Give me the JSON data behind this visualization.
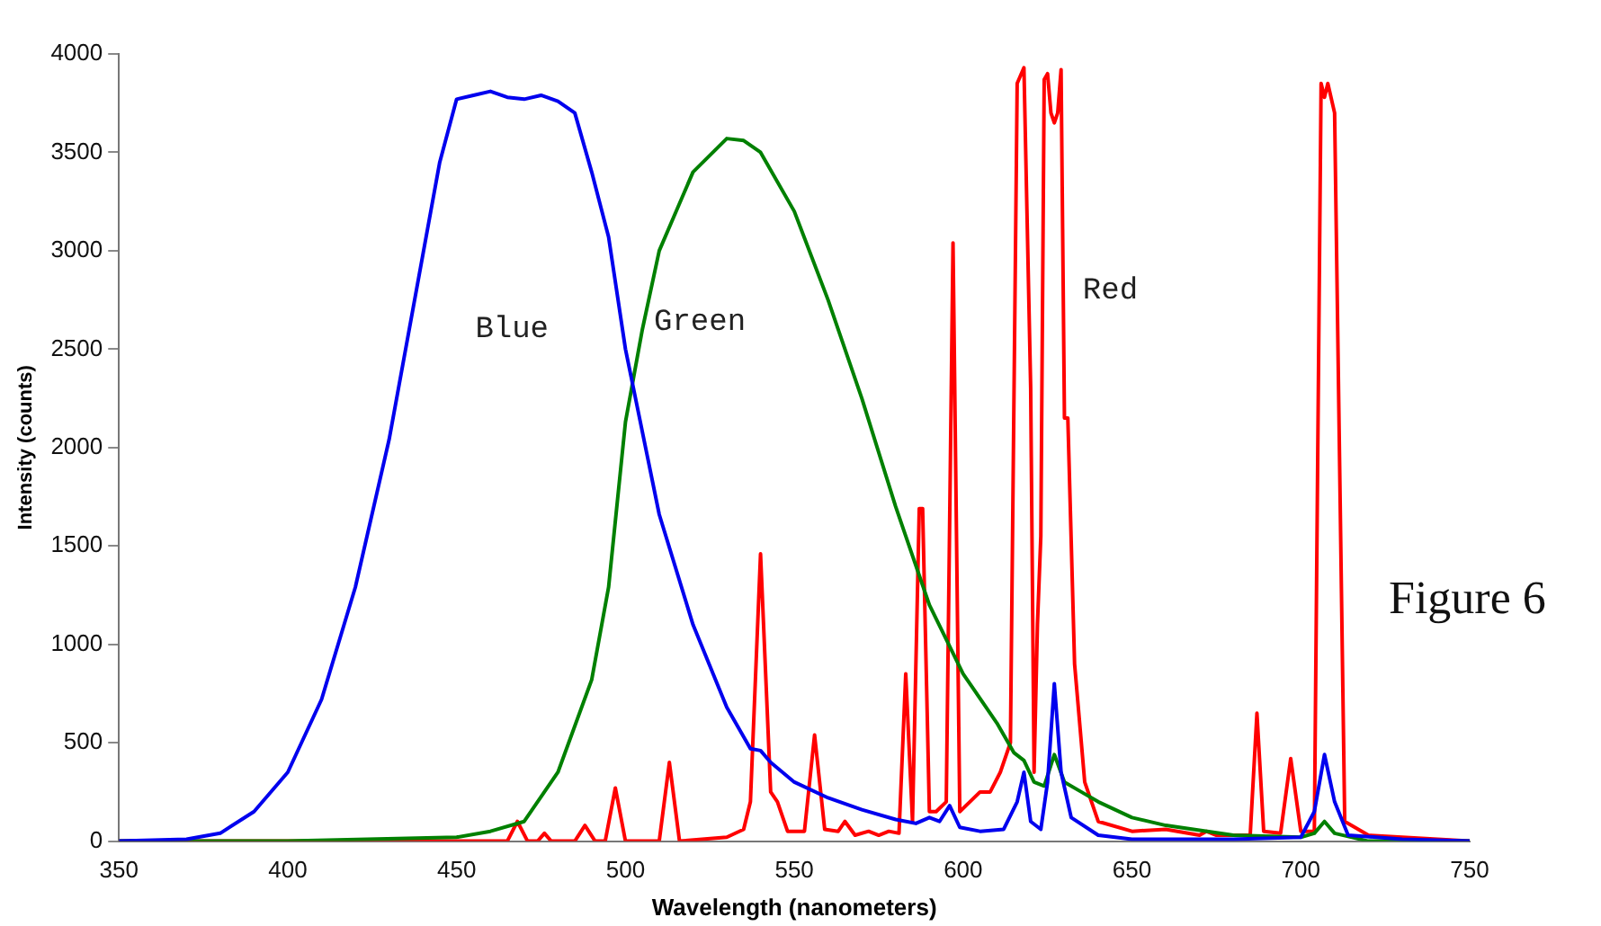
{
  "chart_data": {
    "type": "line",
    "xlabel": "Wavelength (nanometers)",
    "ylabel": "Intensity (counts)",
    "xlim": [
      350,
      750
    ],
    "xticks": [
      350,
      400,
      450,
      500,
      550,
      600,
      650,
      700,
      750
    ],
    "ylim": [
      0,
      4000
    ],
    "yticks": [
      0,
      500,
      1000,
      1500,
      2000,
      2500,
      3000,
      3500,
      4000
    ],
    "grid": false,
    "legend": false,
    "marker": "none",
    "line_style": "solid",
    "annotations": [
      "Figure 6"
    ],
    "series": [
      {
        "name": "Blue",
        "color": "#0000ee",
        "x": [
          350,
          370,
          380,
          390,
          400,
          410,
          420,
          430,
          440,
          445,
          450,
          455,
          460,
          465,
          470,
          475,
          480,
          485,
          490,
          495,
          500,
          510,
          520,
          530,
          537,
          540,
          543,
          550,
          560,
          570,
          580,
          586,
          590,
          593,
          596,
          599,
          605,
          612,
          616,
          618,
          620,
          623,
          625,
          627,
          629,
          632,
          640,
          650,
          680,
          700,
          704,
          707,
          710,
          714,
          730,
          750
        ],
        "values": [
          0,
          10,
          40,
          150,
          350,
          720,
          1290,
          2040,
          2980,
          3450,
          3770,
          3790,
          3810,
          3780,
          3770,
          3790,
          3760,
          3700,
          3400,
          3070,
          2500,
          1660,
          1100,
          680,
          470,
          460,
          400,
          300,
          220,
          160,
          110,
          90,
          120,
          100,
          180,
          70,
          50,
          60,
          200,
          350,
          100,
          60,
          300,
          800,
          350,
          120,
          30,
          10,
          10,
          20,
          150,
          440,
          200,
          30,
          10,
          0
        ]
      },
      {
        "name": "Green",
        "color": "#008000",
        "x": [
          350,
          400,
          450,
          460,
          470,
          480,
          490,
          495,
          500,
          505,
          510,
          520,
          530,
          535,
          540,
          550,
          560,
          570,
          580,
          590,
          600,
          610,
          615,
          618,
          621,
          624,
          627,
          630,
          635,
          640,
          650,
          660,
          680,
          700,
          704,
          707,
          710,
          720,
          750
        ],
        "values": [
          0,
          0,
          20,
          50,
          100,
          350,
          820,
          1290,
          2130,
          2600,
          3000,
          3400,
          3570,
          3560,
          3500,
          3200,
          2750,
          2250,
          1700,
          1200,
          850,
          600,
          450,
          410,
          300,
          280,
          440,
          300,
          250,
          200,
          120,
          80,
          30,
          20,
          40,
          100,
          40,
          0,
          0
        ]
      },
      {
        "name": "Red",
        "color": "#ff0000",
        "x": [
          350,
          465,
          468,
          471,
          474,
          476,
          478,
          485,
          488,
          491,
          494,
          497,
          500,
          510,
          513,
          516,
          530,
          535,
          537,
          540,
          543,
          545,
          548,
          553,
          556,
          559,
          563,
          565,
          568,
          572,
          575,
          578,
          581,
          583,
          585,
          587,
          588,
          590,
          592,
          595,
          597,
          599,
          602,
          605,
          608,
          611,
          614,
          616,
          618,
          620,
          621,
          622,
          623,
          624,
          625,
          626,
          627,
          628,
          629,
          630,
          631,
          633,
          636,
          640,
          650,
          660,
          670,
          672,
          675,
          685,
          687,
          689,
          694,
          697,
          700,
          704,
          706,
          707,
          708,
          710,
          713,
          720,
          750
        ],
        "values": [
          0,
          0,
          100,
          0,
          0,
          40,
          0,
          0,
          80,
          0,
          0,
          270,
          0,
          0,
          400,
          0,
          20,
          60,
          200,
          1460,
          250,
          200,
          50,
          50,
          540,
          60,
          50,
          100,
          30,
          50,
          30,
          50,
          40,
          850,
          100,
          1690,
          1690,
          150,
          150,
          200,
          3040,
          150,
          200,
          250,
          250,
          350,
          500,
          3850,
          3930,
          2300,
          350,
          1100,
          1550,
          3870,
          3900,
          3700,
          3650,
          3700,
          3920,
          2150,
          2150,
          900,
          300,
          100,
          50,
          60,
          30,
          50,
          30,
          30,
          650,
          50,
          40,
          420,
          50,
          50,
          3850,
          3780,
          3850,
          3700,
          100,
          30,
          0
        ]
      }
    ]
  }
}
